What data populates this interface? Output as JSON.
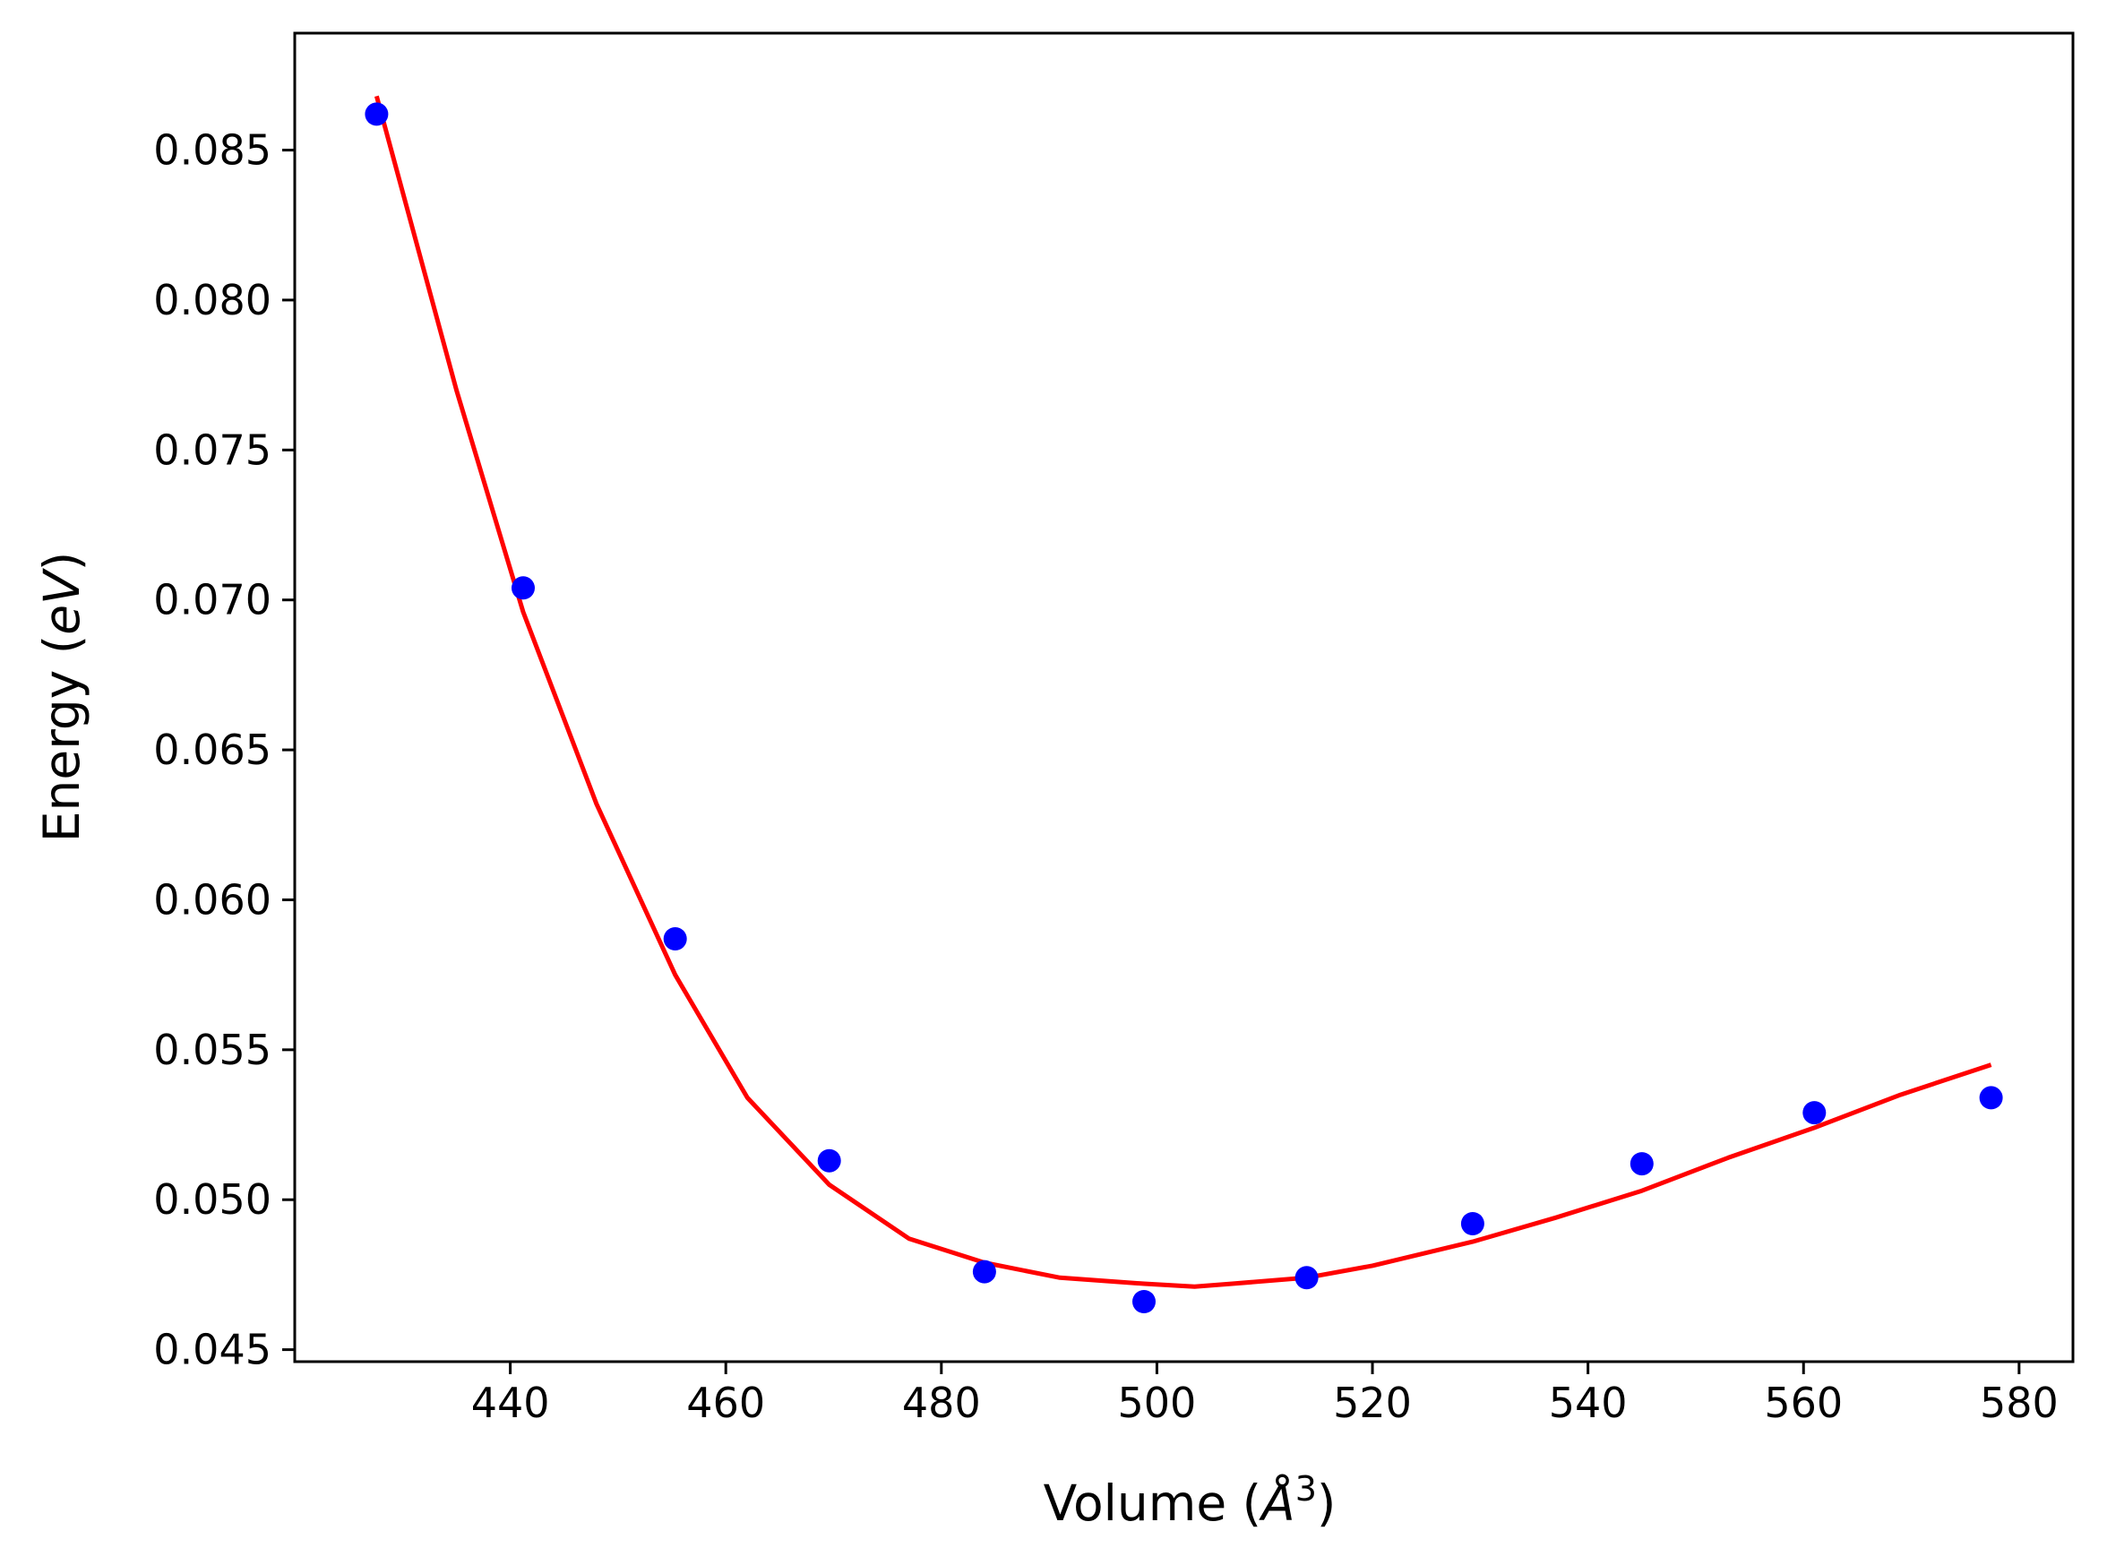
{
  "chart_data": {
    "type": "scatter",
    "xlabel": "Volume",
    "xlabel_unit_base": "Å",
    "xlabel_unit_power": "3",
    "ylabel": "Energy",
    "ylabel_unit": "eV",
    "xlim": [
      420,
      585
    ],
    "ylim": [
      0.0446,
      0.0889
    ],
    "xticks": [
      440,
      460,
      480,
      500,
      520,
      540,
      560,
      580
    ],
    "yticks": [
      0.045,
      0.05,
      0.055,
      0.06,
      0.065,
      0.07,
      0.075,
      0.08,
      0.085
    ],
    "grid": false,
    "series": [
      {
        "marker": "point",
        "color": "#0000ff",
        "x": [
          427.6,
          441.2,
          455.3,
          469.6,
          484.0,
          498.8,
          513.9,
          529.3,
          545.0,
          561.0,
          577.4
        ],
        "y": [
          0.0862,
          0.0704,
          0.0587,
          0.0513,
          0.0476,
          0.0466,
          0.0474,
          0.0492,
          0.0512,
          0.0529,
          0.0534
        ]
      },
      {
        "marker": "line",
        "color": "#ff0000",
        "x": [
          427.6,
          435,
          441.2,
          448,
          455.3,
          462,
          469.6,
          477,
          484.0,
          491,
          498.8,
          503.5,
          507,
          513.9,
          520,
          529.3,
          537,
          545.0,
          553,
          561.0,
          569,
          577.4
        ],
        "y": [
          0.0868,
          0.077,
          0.0696,
          0.0632,
          0.0575,
          0.0534,
          0.0505,
          0.0487,
          0.0479,
          0.0474,
          0.0472,
          0.0471,
          0.0472,
          0.0474,
          0.0478,
          0.0486,
          0.0494,
          0.0503,
          0.0514,
          0.0524,
          0.0535,
          0.0545
        ]
      }
    ]
  }
}
